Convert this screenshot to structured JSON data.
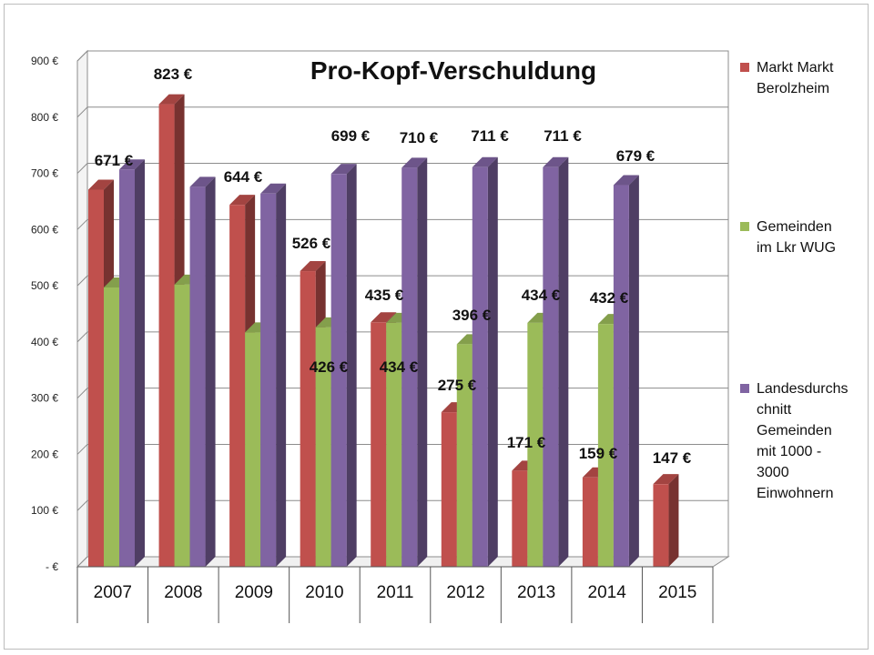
{
  "chart_data": {
    "type": "bar",
    "title": "Pro-Kopf-Verschuldung",
    "categories": [
      "2007",
      "2008",
      "2009",
      "2010",
      "2011",
      "2012",
      "2013",
      "2014",
      "2015"
    ],
    "ylim": [
      0,
      900
    ],
    "yticks": [
      {
        "value": 0,
        "label": "-  €"
      },
      {
        "value": 100,
        "label": "100 €"
      },
      {
        "value": 200,
        "label": "200 €"
      },
      {
        "value": 300,
        "label": "300 €"
      },
      {
        "value": 400,
        "label": "400 €"
      },
      {
        "value": 500,
        "label": "500 €"
      },
      {
        "value": 600,
        "label": "600 €"
      },
      {
        "value": 700,
        "label": "700 €"
      },
      {
        "value": 800,
        "label": "800 €"
      },
      {
        "value": 900,
        "label": "900 €"
      }
    ],
    "grid": true,
    "legend_position": "right",
    "series": [
      {
        "name": "Markt Markt Berolzheim",
        "legend_lines": [
          "Markt Markt",
          "Berolzheim"
        ],
        "color": "#c0504d",
        "values": [
          671,
          823,
          644,
          526,
          435,
          275,
          171,
          159,
          147
        ],
        "labels": [
          "671 €",
          "823 €",
          "644 €",
          "526 €",
          "435 €",
          "275 €",
          "171 €",
          "159 €",
          "147 €"
        ]
      },
      {
        "name": "Gemeinden im Lkr WUG",
        "legend_lines": [
          "Gemeinden",
          "im Lkr WUG"
        ],
        "color": "#9bbb59",
        "values": [
          497,
          502,
          417,
          426,
          434,
          396,
          434,
          432,
          null
        ],
        "labels": [
          null,
          null,
          null,
          "426 €",
          "434 €",
          "396 €",
          "434 €",
          "432 €",
          null
        ]
      },
      {
        "name": "Landesdurchschnitt Gemeinden mit 1000 - 3000 Einwohnern",
        "legend_lines": [
          "Landesdurchs",
          "chnitt",
          "Gemeinden",
          "mit 1000 -",
          "3000",
          "Einwohnern"
        ],
        "color": "#8064a2",
        "values": [
          707,
          676,
          664,
          699,
          710,
          711,
          711,
          679,
          null
        ],
        "labels": [
          null,
          null,
          null,
          "699 €",
          "710 €",
          "711 €",
          "711 €",
          "679 €",
          null
        ]
      }
    ]
  }
}
